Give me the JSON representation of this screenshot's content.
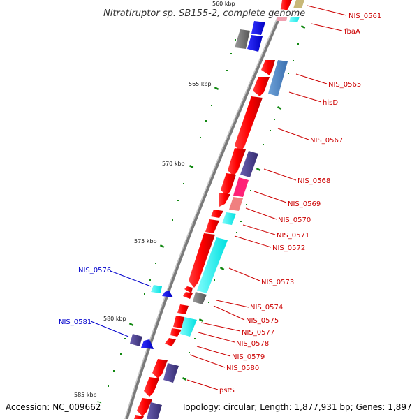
{
  "title": "Nitratiruptor sp. SB155-2, complete genome",
  "accession": "Accession: NC_009662",
  "summary": "Topology: circular; Length: 1,877,931 bp; Genes: 1,897",
  "kbp_ticks": [
    "560 kbp",
    "565 kbp",
    "570 kbp",
    "575 kbp",
    "580 kbp",
    "585 kbp"
  ],
  "gene_labels": [
    {
      "text": "NIS_0561",
      "color": "#cc0000"
    },
    {
      "text": "fbaA",
      "color": "#cc0000"
    },
    {
      "text": "NIS_0565",
      "color": "#cc0000"
    },
    {
      "text": "hisD",
      "color": "#cc0000"
    },
    {
      "text": "NIS_0567",
      "color": "#cc0000"
    },
    {
      "text": "NIS_0568",
      "color": "#cc0000"
    },
    {
      "text": "NIS_0569",
      "color": "#cc0000"
    },
    {
      "text": "NIS_0570",
      "color": "#cc0000"
    },
    {
      "text": "NIS_0571",
      "color": "#cc0000"
    },
    {
      "text": "NIS_0572",
      "color": "#cc0000"
    },
    {
      "text": "NIS_0573",
      "color": "#cc0000"
    },
    {
      "text": "NIS_0574",
      "color": "#cc0000"
    },
    {
      "text": "NIS_0575",
      "color": "#cc0000"
    },
    {
      "text": "NIS_0577",
      "color": "#cc0000"
    },
    {
      "text": "NIS_0578",
      "color": "#cc0000"
    },
    {
      "text": "NIS_0579",
      "color": "#cc0000"
    },
    {
      "text": "NIS_0580",
      "color": "#cc0000"
    },
    {
      "text": "pstS",
      "color": "#cc0000"
    },
    {
      "text": "NIS_0576",
      "color": "#0000cc"
    },
    {
      "text": "NIS_0581",
      "color": "#0000cc"
    }
  ],
  "colors": {
    "backbone": "#888888",
    "forward_gene": "#ff0000",
    "reverse_gene": "#0000ee",
    "gc_skew_tick": "#118811",
    "cyan_feature": "#00eeee",
    "steelblue_feature": "#4a86c8",
    "slate_feature": "#4a3f8a",
    "magenta_feature": "#ee1188"
  }
}
